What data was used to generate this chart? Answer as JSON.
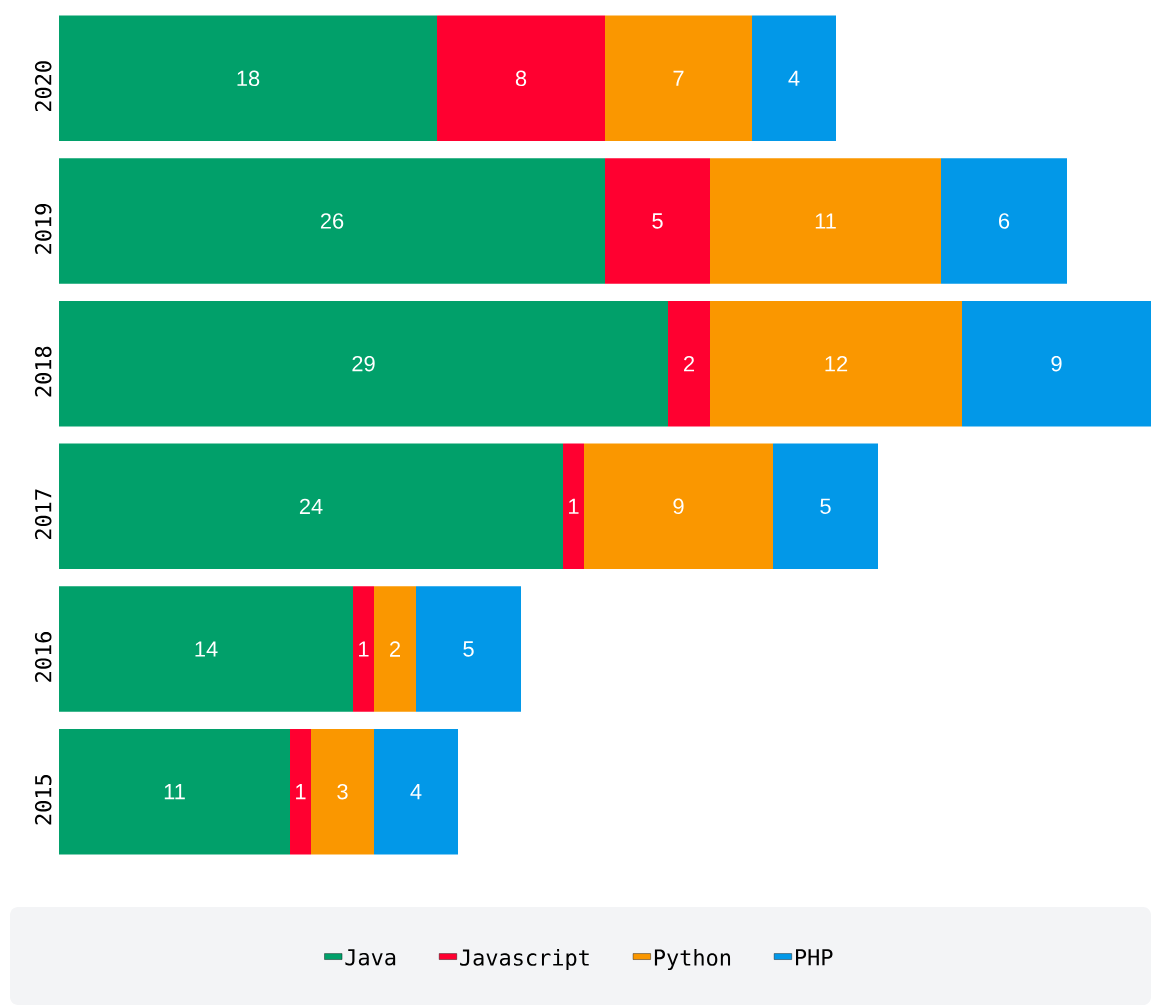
{
  "chart_data": {
    "type": "bar",
    "orientation": "horizontal",
    "stacked": true,
    "data_labels": true,
    "legend": "bottom",
    "categories": [
      "2020",
      "2019",
      "2018",
      "2017",
      "2016",
      "2015"
    ],
    "series": [
      {
        "name": "Java",
        "color": "#01a06a",
        "values": [
          18,
          26,
          29,
          24,
          14,
          11
        ]
      },
      {
        "name": "Javascript",
        "color": "#ff0030",
        "values": [
          8,
          5,
          2,
          1,
          1,
          1
        ]
      },
      {
        "name": "Python",
        "color": "#fa9700",
        "values": [
          7,
          11,
          12,
          9,
          2,
          3
        ]
      },
      {
        "name": "PHP",
        "color": "#0298e8",
        "values": [
          4,
          6,
          9,
          5,
          5,
          4
        ]
      }
    ]
  }
}
